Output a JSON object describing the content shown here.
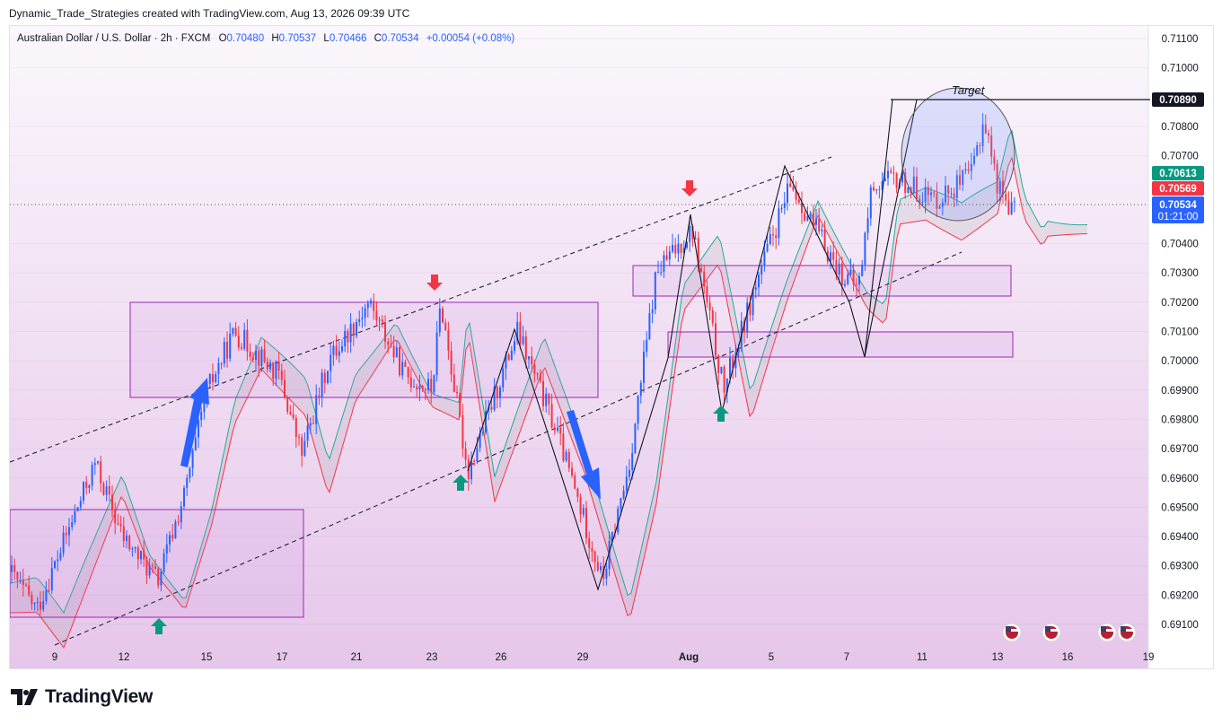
{
  "header": {
    "published": "Dynamic_Trade_Strategies created with TradingView.com, Aug 13, 2026 09:39 UTC"
  },
  "legend": {
    "symbol": "Australian Dollar / U.S. Dollar · 2h · FXCM",
    "o_label": "O",
    "o_value": "0.70480",
    "h_label": "H",
    "h_value": "0.70537",
    "l_label": "L",
    "l_value": "0.70466",
    "c_label": "C",
    "c_value": "0.70534",
    "change": "+0.00054 (+0.08%)"
  },
  "price_badges": {
    "target": "0.70890",
    "span_a": "0.70613",
    "span_b": "0.70569",
    "last": "0.70534",
    "countdown": "01:21:00"
  },
  "annotation_target": "Target",
  "footer": {
    "brand": "TradingView"
  },
  "colors": {
    "up": "#2962ff",
    "down": "#f23645",
    "cloud_green": "#22ab94",
    "cloud_red": "#f23645",
    "zone": "#9c27b0",
    "arrow_up": "#089981",
    "arrow_down": "#f23645",
    "badge_dark": "#131722"
  },
  "chart_data": {
    "type": "candlestick",
    "title": "Australian Dollar / U.S. Dollar · 2h · FXCM",
    "ylim": [
      0.6905,
      0.7115
    ],
    "y_ticks": [
      "0.71100",
      "0.71000",
      "0.70800",
      "0.70700",
      "0.70400",
      "0.70300",
      "0.70200",
      "0.70100",
      "0.70000",
      "0.69900",
      "0.69800",
      "0.69700",
      "0.69600",
      "0.69500",
      "0.69400",
      "0.69300",
      "0.69200",
      "0.69100"
    ],
    "x_ticks": [
      "9",
      "12",
      "15",
      "17",
      "21",
      "23",
      "26",
      "29",
      "Aug",
      "5",
      "7",
      "11",
      "13",
      "16",
      "19"
    ],
    "path": [
      {
        "x": 0,
        "y": 0.6928
      },
      {
        "x": 30,
        "y": 0.6915
      },
      {
        "x": 95,
        "y": 0.6965
      },
      {
        "x": 125,
        "y": 0.694
      },
      {
        "x": 165,
        "y": 0.6925
      },
      {
        "x": 195,
        "y": 0.6955
      },
      {
        "x": 220,
        "y": 0.699
      },
      {
        "x": 250,
        "y": 0.701
      },
      {
        "x": 300,
        "y": 0.6995
      },
      {
        "x": 325,
        "y": 0.6968
      },
      {
        "x": 355,
        "y": 0.7
      },
      {
        "x": 400,
        "y": 0.702
      },
      {
        "x": 440,
        "y": 0.6995
      },
      {
        "x": 470,
        "y": 0.699
      },
      {
        "x": 480,
        "y": 0.702
      },
      {
        "x": 510,
        "y": 0.6962
      },
      {
        "x": 565,
        "y": 0.701
      },
      {
        "x": 610,
        "y": 0.6975
      },
      {
        "x": 660,
        "y": 0.6925
      },
      {
        "x": 690,
        "y": 0.6965
      },
      {
        "x": 720,
        "y": 0.703
      },
      {
        "x": 760,
        "y": 0.7045
      },
      {
        "x": 795,
        "y": 0.699
      },
      {
        "x": 835,
        "y": 0.703
      },
      {
        "x": 870,
        "y": 0.706
      },
      {
        "x": 925,
        "y": 0.703
      },
      {
        "x": 945,
        "y": 0.7025
      },
      {
        "x": 960,
        "y": 0.706
      },
      {
        "x": 990,
        "y": 0.7062
      },
      {
        "x": 1030,
        "y": 0.7055
      },
      {
        "x": 1070,
        "y": 0.7063
      },
      {
        "x": 1085,
        "y": 0.7083
      },
      {
        "x": 1100,
        "y": 0.706
      },
      {
        "x": 1120,
        "y": 0.705
      },
      {
        "x": 1125,
        "y": 0.70534
      }
    ]
  }
}
